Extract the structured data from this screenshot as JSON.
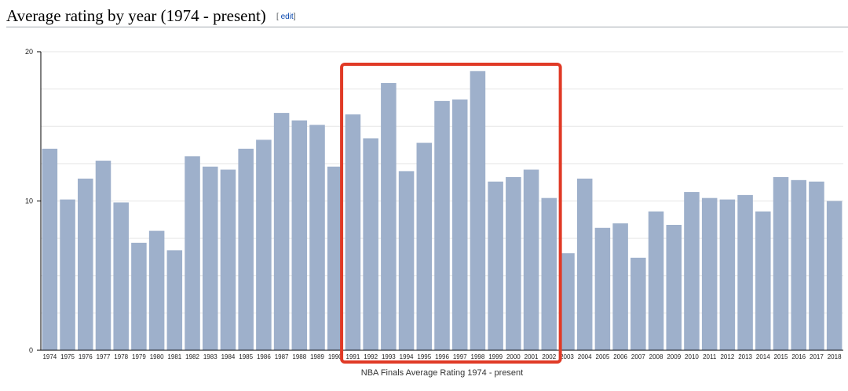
{
  "page": {
    "heading": "Average rating by year (1974 - present)",
    "edit_label": "edit",
    "edit_open": "[",
    "edit_close": "]"
  },
  "chart_data": {
    "type": "bar",
    "title": "",
    "xlabel": "NBA Finals Average Rating 1974 - present",
    "ylabel": "",
    "ylim": [
      0,
      20
    ],
    "yticks": [
      "0",
      "10",
      "20"
    ],
    "grid": "horizontal gridlines",
    "bar_color": "#9eb0cb",
    "highlight_color": "#e03a26",
    "highlight_range": [
      "1991",
      "2002"
    ],
    "categories": [
      "1974",
      "1975",
      "1976",
      "1977",
      "1978",
      "1979",
      "1980",
      "1981",
      "1982",
      "1983",
      "1984",
      "1985",
      "1986",
      "1987",
      "1988",
      "1989",
      "1990",
      "1991",
      "1992",
      "1993",
      "1994",
      "1995",
      "1996",
      "1997",
      "1998",
      "1999",
      "2000",
      "2001",
      "2002",
      "2003",
      "2004",
      "2005",
      "2006",
      "2007",
      "2008",
      "2009",
      "2010",
      "2011",
      "2012",
      "2013",
      "2014",
      "2015",
      "2016",
      "2017",
      "2018"
    ],
    "values": [
      13.5,
      10.1,
      11.5,
      12.7,
      9.9,
      7.2,
      8.0,
      6.7,
      13.0,
      12.3,
      12.1,
      13.5,
      14.1,
      15.9,
      15.4,
      15.1,
      12.3,
      15.8,
      14.2,
      17.9,
      12.0,
      13.9,
      16.7,
      16.8,
      18.7,
      11.3,
      11.6,
      12.1,
      10.2,
      6.5,
      11.5,
      8.2,
      8.5,
      6.2,
      9.3,
      8.4,
      10.6,
      10.2,
      10.1,
      10.4,
      9.3,
      11.6,
      11.4,
      11.3,
      10.0
    ]
  }
}
